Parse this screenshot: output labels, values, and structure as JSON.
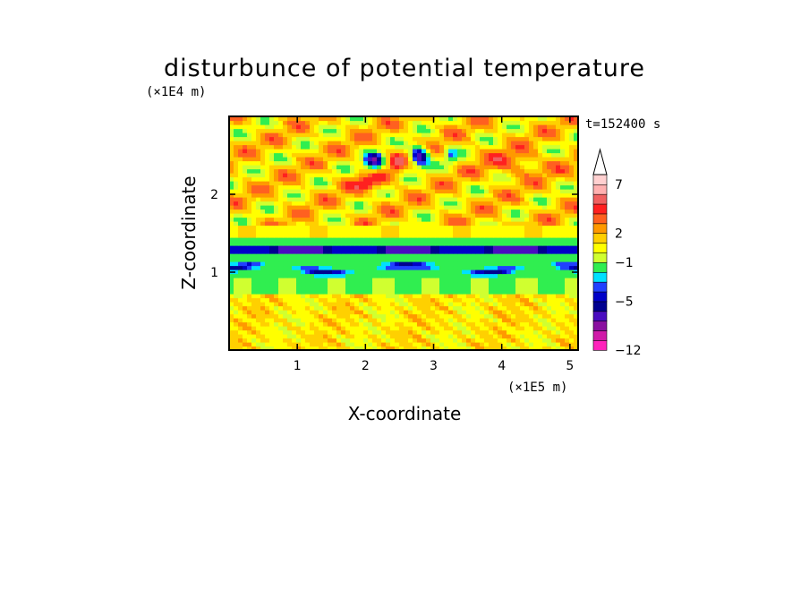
{
  "chart_data": {
    "type": "heatmap",
    "title": "disturbunce of potential temperature",
    "xlabel": "X-coordinate",
    "ylabel": "Z-coordinate",
    "x_unit": "(×1E5 m)",
    "y_unit": "(×1E4 m)",
    "time_label": "t=152400 s",
    "xlim": [
      0,
      5.12
    ],
    "ylim": [
      0,
      3.0
    ],
    "x_ticks": [
      "1",
      "2",
      "3",
      "4",
      "5"
    ],
    "y_ticks": [
      "1",
      "2"
    ],
    "colorbar": {
      "tick_labels": [
        "7",
        "2",
        "−1",
        "−5",
        "−12"
      ],
      "levels": [
        -12,
        -10,
        -8,
        -7,
        -6,
        -5,
        -4,
        -3,
        -2,
        -1,
        0,
        1,
        2,
        3,
        4,
        5,
        6,
        7,
        8,
        9,
        10
      ],
      "colors": [
        "#ff22bb",
        "#d01aa8",
        "#8a10a0",
        "#4a0cc0",
        "#000090",
        "#0000c8",
        "#2040ff",
        "#00e0ff",
        "#30ee50",
        "#d0ff30",
        "#ffff00",
        "#ffd000",
        "#ff9900",
        "#ff6020",
        "#ff2020",
        "#f06060",
        "#ffb0b0",
        "#ffd0d0"
      ],
      "extend": "max"
    }
  }
}
